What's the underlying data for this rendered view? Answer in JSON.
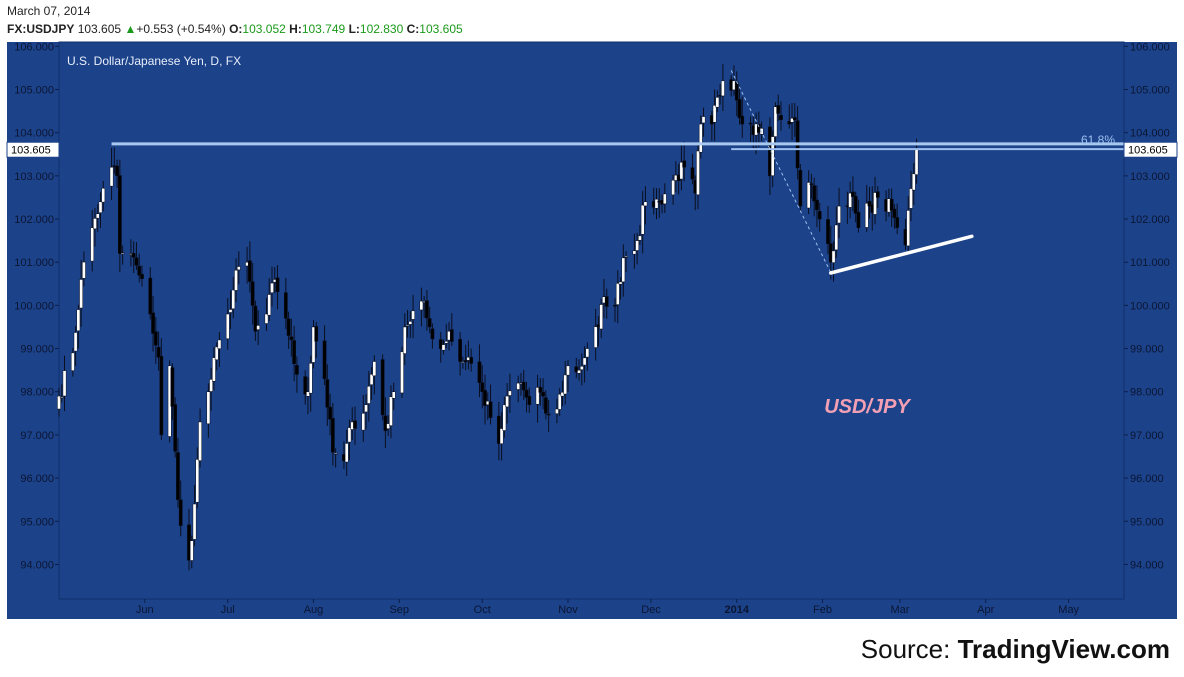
{
  "header": {
    "date": "March 07, 2014",
    "symbol": "FX:USDJPY",
    "last": "103.605",
    "change": "+0.553 (+0.54%)",
    "o_label": "O:",
    "o": "103.052",
    "h_label": "H:",
    "h": "103.749",
    "l_label": "L:",
    "l": "102.830",
    "c_label": "C:",
    "c": "103.605",
    "up_icon": "triangle-up-icon"
  },
  "chart_data": {
    "type": "candlestick",
    "title": "U.S. Dollar/Japanese Yen, D, FX",
    "watermark": "USD/JPY",
    "price_tag": "103.605",
    "fib_label": "61.8%",
    "colors": {
      "background": "#1c428a",
      "up": "#ffffff",
      "down": "#000000",
      "resistance": "#a9c8f0",
      "fib": "#9ec0ee",
      "support": "#ffffff",
      "watermark": "#f3a0b4"
    },
    "y_range": [
      93.2,
      106.1
    ],
    "y_ticks": [
      "94.000",
      "95.000",
      "96.000",
      "97.000",
      "98.000",
      "99.000",
      "100.000",
      "101.000",
      "102.000",
      "103.000",
      "104.000",
      "105.000",
      "106.000"
    ],
    "x_range": [
      "2013-05-01",
      "2014-05-21"
    ],
    "x_ticks": [
      {
        "label": "Jun",
        "date": "2013-06-01"
      },
      {
        "label": "Jul",
        "date": "2013-07-01"
      },
      {
        "label": "Aug",
        "date": "2013-08-01"
      },
      {
        "label": "Sep",
        "date": "2013-09-01"
      },
      {
        "label": "Oct",
        "date": "2013-10-01"
      },
      {
        "label": "Nov",
        "date": "2013-11-01"
      },
      {
        "label": "Dec",
        "date": "2013-12-01"
      },
      {
        "label": "2014",
        "date": "2014-01-01",
        "bold": true
      },
      {
        "label": "Feb",
        "date": "2014-02-01"
      },
      {
        "label": "Mar",
        "date": "2014-03-01"
      },
      {
        "label": "Apr",
        "date": "2014-04-01"
      },
      {
        "label": "May",
        "date": "2014-05-01"
      }
    ],
    "resistance_line": {
      "from": "2013-05-20",
      "to": "2014-05-21",
      "value": 103.74
    },
    "fib_line": {
      "from": "2013-12-30",
      "to": "2014-05-21",
      "value": 103.62
    },
    "support_line": {
      "from": "2014-02-04",
      "value_from": 100.75,
      "to": "2014-03-27",
      "value_to": 101.6
    },
    "fib_swing": {
      "from": "2013-12-30",
      "value_from": 105.44,
      "to": "2014-02-04",
      "value_to": 100.76
    },
    "anchors": [
      {
        "d": "2013-05-01",
        "v": 97.9
      },
      {
        "d": "2013-05-06",
        "v": 98.9
      },
      {
        "d": "2013-05-09",
        "v": 100.6
      },
      {
        "d": "2013-05-13",
        "v": 101.8
      },
      {
        "d": "2013-05-16",
        "v": 102.4
      },
      {
        "d": "2013-05-20",
        "v": 103.2
      },
      {
        "d": "2013-05-22",
        "v": 103.0
      },
      {
        "d": "2013-05-23",
        "v": 101.2
      },
      {
        "d": "2013-05-27",
        "v": 101.2
      },
      {
        "d": "2013-05-30",
        "v": 100.7
      },
      {
        "d": "2013-06-03",
        "v": 99.8
      },
      {
        "d": "2013-06-06",
        "v": 98.8
      },
      {
        "d": "2013-06-07",
        "v": 97.0
      },
      {
        "d": "2013-06-10",
        "v": 98.6
      },
      {
        "d": "2013-06-13",
        "v": 95.5
      },
      {
        "d": "2013-06-14",
        "v": 94.9
      },
      {
        "d": "2013-06-17",
        "v": 94.1
      },
      {
        "d": "2013-06-19",
        "v": 95.4
      },
      {
        "d": "2013-06-21",
        "v": 97.3
      },
      {
        "d": "2013-06-24",
        "v": 98.0
      },
      {
        "d": "2013-06-28",
        "v": 99.2
      },
      {
        "d": "2013-07-01",
        "v": 99.8
      },
      {
        "d": "2013-07-05",
        "v": 100.9
      },
      {
        "d": "2013-07-08",
        "v": 101.0
      },
      {
        "d": "2013-07-11",
        "v": 99.4
      },
      {
        "d": "2013-07-15",
        "v": 99.8
      },
      {
        "d": "2013-07-18",
        "v": 100.6
      },
      {
        "d": "2013-07-22",
        "v": 99.7
      },
      {
        "d": "2013-07-26",
        "v": 98.4
      },
      {
        "d": "2013-07-30",
        "v": 98.0
      },
      {
        "d": "2013-08-01",
        "v": 99.5
      },
      {
        "d": "2013-08-05",
        "v": 98.3
      },
      {
        "d": "2013-08-08",
        "v": 96.6
      },
      {
        "d": "2013-08-12",
        "v": 96.4
      },
      {
        "d": "2013-08-15",
        "v": 97.3
      },
      {
        "d": "2013-08-19",
        "v": 97.5
      },
      {
        "d": "2013-08-23",
        "v": 98.7
      },
      {
        "d": "2013-08-27",
        "v": 97.1
      },
      {
        "d": "2013-08-30",
        "v": 98.0
      },
      {
        "d": "2013-09-03",
        "v": 99.5
      },
      {
        "d": "2013-09-09",
        "v": 100.1
      },
      {
        "d": "2013-09-12",
        "v": 99.5
      },
      {
        "d": "2013-09-16",
        "v": 99.0
      },
      {
        "d": "2013-09-19",
        "v": 99.4
      },
      {
        "d": "2013-09-23",
        "v": 98.7
      },
      {
        "d": "2013-09-26",
        "v": 98.8
      },
      {
        "d": "2013-10-01",
        "v": 98.0
      },
      {
        "d": "2013-10-04",
        "v": 97.4
      },
      {
        "d": "2013-10-07",
        "v": 96.8
      },
      {
        "d": "2013-10-10",
        "v": 97.9
      },
      {
        "d": "2013-10-15",
        "v": 98.2
      },
      {
        "d": "2013-10-18",
        "v": 97.7
      },
      {
        "d": "2013-10-21",
        "v": 98.1
      },
      {
        "d": "2013-10-24",
        "v": 97.5
      },
      {
        "d": "2013-10-28",
        "v": 97.6
      },
      {
        "d": "2013-11-01",
        "v": 98.6
      },
      {
        "d": "2013-11-05",
        "v": 98.5
      },
      {
        "d": "2013-11-08",
        "v": 99.0
      },
      {
        "d": "2013-11-12",
        "v": 99.5
      },
      {
        "d": "2013-11-14",
        "v": 100.2
      },
      {
        "d": "2013-11-18",
        "v": 100.0
      },
      {
        "d": "2013-11-21",
        "v": 101.1
      },
      {
        "d": "2013-11-26",
        "v": 101.5
      },
      {
        "d": "2013-11-29",
        "v": 102.4
      },
      {
        "d": "2013-12-04",
        "v": 102.4
      },
      {
        "d": "2013-12-09",
        "v": 102.9
      },
      {
        "d": "2013-12-13",
        "v": 103.2
      },
      {
        "d": "2013-12-17",
        "v": 102.6
      },
      {
        "d": "2013-12-19",
        "v": 104.2
      },
      {
        "d": "2013-12-23",
        "v": 104.2
      },
      {
        "d": "2013-12-27",
        "v": 105.2
      },
      {
        "d": "2013-12-31",
        "v": 105.2
      },
      {
        "d": "2014-01-03",
        "v": 104.2
      },
      {
        "d": "2014-01-06",
        "v": 104.2
      },
      {
        "d": "2014-01-10",
        "v": 104.1
      },
      {
        "d": "2014-01-13",
        "v": 103.0
      },
      {
        "d": "2014-01-15",
        "v": 104.6
      },
      {
        "d": "2014-01-17",
        "v": 104.3
      },
      {
        "d": "2014-01-20",
        "v": 104.2
      },
      {
        "d": "2014-01-22",
        "v": 104.3
      },
      {
        "d": "2014-01-24",
        "v": 102.3
      },
      {
        "d": "2014-01-28",
        "v": 102.8
      },
      {
        "d": "2014-01-31",
        "v": 102.0
      },
      {
        "d": "2014-02-04",
        "v": 101.0
      },
      {
        "d": "2014-02-07",
        "v": 102.3
      },
      {
        "d": "2014-02-11",
        "v": 102.6
      },
      {
        "d": "2014-02-14",
        "v": 101.8
      },
      {
        "d": "2014-02-18",
        "v": 102.3
      },
      {
        "d": "2014-02-21",
        "v": 102.5
      },
      {
        "d": "2014-02-26",
        "v": 102.2
      },
      {
        "d": "2014-02-28",
        "v": 101.8
      },
      {
        "d": "2014-03-03",
        "v": 101.4
      },
      {
        "d": "2014-03-04",
        "v": 102.2
      },
      {
        "d": "2014-03-06",
        "v": 103.05
      },
      {
        "d": "2014-03-07",
        "v": 103.605
      }
    ]
  },
  "footer": {
    "prefix": "Source: ",
    "brand": "TradingView.com"
  }
}
